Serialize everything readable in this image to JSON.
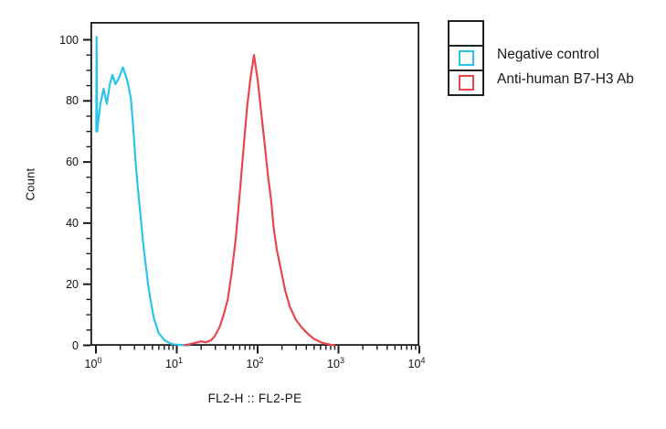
{
  "figure": {
    "background": "#ffffff"
  },
  "chart_data": {
    "type": "line",
    "subtype": "flow-cytometry-histogram",
    "title": "",
    "xlabel": "FL2-H :: FL2-PE",
    "ylabel": "Count",
    "grid": false,
    "x_axis": {
      "scale": "log10",
      "range_log10": [
        -0.068,
        4
      ],
      "major_exponents": [
        0,
        1,
        2,
        3,
        4
      ],
      "minor_mantissas": [
        2,
        3,
        4,
        5,
        6,
        7,
        8,
        9
      ]
    },
    "y_axis": {
      "range": [
        0,
        106
      ],
      "major_ticks": [
        0,
        20,
        40,
        60,
        80,
        100
      ],
      "minor_step": 5
    },
    "legend": {
      "position": "outside-top-right",
      "entries": [
        {
          "label": "Negative control",
          "swatch_color": "#2BC3EC"
        },
        {
          "label": "Anti-human B7-H3 Ab",
          "swatch_color": "#E8454C"
        }
      ]
    },
    "series": [
      {
        "name": "Negative control",
        "color": "#2BC3EC",
        "points_log10x_count": [
          [
            0.005,
            70
          ],
          [
            0.008,
            101
          ],
          [
            0.015,
            70
          ],
          [
            0.055,
            79
          ],
          [
            0.095,
            84
          ],
          [
            0.135,
            79
          ],
          [
            0.172,
            85.5
          ],
          [
            0.205,
            88.5
          ],
          [
            0.242,
            85.5
          ],
          [
            0.285,
            87.5
          ],
          [
            0.335,
            91
          ],
          [
            0.39,
            86.5
          ],
          [
            0.432,
            81
          ],
          [
            0.462,
            71
          ],
          [
            0.49,
            60
          ],
          [
            0.52,
            51
          ],
          [
            0.55,
            43
          ],
          [
            0.582,
            34
          ],
          [
            0.612,
            27
          ],
          [
            0.645,
            20
          ],
          [
            0.68,
            14
          ],
          [
            0.715,
            9
          ],
          [
            0.775,
            4
          ],
          [
            0.85,
            1.6
          ],
          [
            0.94,
            0.4
          ],
          [
            1.05,
            0.1
          ],
          [
            1.15,
            0
          ]
        ]
      },
      {
        "name": "Anti-human B7-H3 Ab",
        "color": "#E8454C",
        "points_log10x_count": [
          [
            1.1,
            0
          ],
          [
            1.2,
            0.6
          ],
          [
            1.3,
            1.3
          ],
          [
            1.36,
            1.0
          ],
          [
            1.42,
            1.6
          ],
          [
            1.47,
            3
          ],
          [
            1.53,
            6
          ],
          [
            1.58,
            10
          ],
          [
            1.63,
            15
          ],
          [
            1.68,
            24
          ],
          [
            1.73,
            35
          ],
          [
            1.78,
            50
          ],
          [
            1.83,
            66
          ],
          [
            1.87,
            78
          ],
          [
            1.91,
            87
          ],
          [
            1.955,
            95
          ],
          [
            2.0,
            87
          ],
          [
            2.045,
            76
          ],
          [
            2.09,
            65
          ],
          [
            2.13,
            55
          ],
          [
            2.165,
            48
          ],
          [
            2.2,
            38
          ],
          [
            2.24,
            31
          ],
          [
            2.29,
            24.5
          ],
          [
            2.34,
            18
          ],
          [
            2.4,
            12.5
          ],
          [
            2.47,
            8.5
          ],
          [
            2.54,
            6
          ],
          [
            2.62,
            3.8
          ],
          [
            2.7,
            2
          ],
          [
            2.8,
            0.8
          ],
          [
            2.9,
            0.2
          ],
          [
            2.95,
            0
          ]
        ]
      }
    ],
    "frame_color": "#1a1a1a"
  }
}
